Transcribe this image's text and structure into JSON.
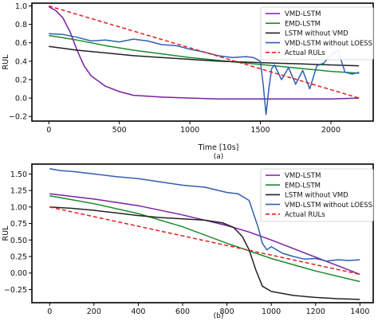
{
  "chart_data": [
    {
      "type": "line",
      "panel_label": "(a)",
      "xlabel": "Time [10s]",
      "ylabel": "RUL",
      "xlim": [
        -120,
        2300
      ],
      "ylim": [
        -0.25,
        1.03
      ],
      "xticks": [
        0,
        500,
        1000,
        1500,
        2000
      ],
      "yticks": [
        -0.2,
        0.0,
        0.2,
        0.4,
        0.6,
        0.8,
        1.0
      ],
      "ytick_labels": [
        "−0.2",
        "0.0",
        "0.2",
        "0.4",
        "0.6",
        "0.8",
        "1.0"
      ],
      "legend_position": "top-right",
      "series": [
        {
          "name": "VMD-LSTM",
          "color": "#7b1fa2",
          "dash": "",
          "x": [
            0,
            50,
            100,
            150,
            200,
            250,
            300,
            400,
            500,
            600,
            800,
            1000,
            1200,
            1500,
            2000,
            2200
          ],
          "y": [
            0.99,
            0.95,
            0.87,
            0.72,
            0.52,
            0.35,
            0.24,
            0.13,
            0.07,
            0.03,
            0.01,
            0.0,
            -0.01,
            -0.01,
            -0.01,
            0.0
          ]
        },
        {
          "name": "EMD-LSTM",
          "color": "#1a8a2e",
          "dash": "",
          "x": [
            0,
            200,
            400,
            600,
            800,
            1000,
            1200,
            1400,
            1600,
            1800,
            2000,
            2200
          ],
          "y": [
            0.68,
            0.63,
            0.57,
            0.52,
            0.48,
            0.44,
            0.41,
            0.38,
            0.35,
            0.32,
            0.29,
            0.27
          ]
        },
        {
          "name": "LSTM without VMD",
          "color": "#222222",
          "dash": "",
          "x": [
            0,
            200,
            400,
            600,
            800,
            1000,
            1200,
            1400,
            1600,
            1800,
            2000,
            2200
          ],
          "y": [
            0.56,
            0.52,
            0.49,
            0.46,
            0.44,
            0.42,
            0.4,
            0.39,
            0.38,
            0.37,
            0.36,
            0.35
          ]
        },
        {
          "name": "VMD-LSTM without LOESS",
          "color": "#2f5fb3",
          "dash": "",
          "x": [
            0,
            100,
            200,
            300,
            400,
            500,
            600,
            700,
            800,
            900,
            1000,
            1100,
            1200,
            1300,
            1400,
            1450,
            1500,
            1520,
            1540,
            1560,
            1580,
            1600,
            1650,
            1700,
            1750,
            1800,
            1850,
            1900,
            1950,
            2000,
            2050,
            2100,
            2150,
            2200
          ],
          "y": [
            0.7,
            0.69,
            0.66,
            0.62,
            0.63,
            0.61,
            0.64,
            0.62,
            0.58,
            0.57,
            0.53,
            0.5,
            0.46,
            0.44,
            0.45,
            0.44,
            0.4,
            0.15,
            -0.18,
            0.1,
            0.32,
            0.36,
            0.2,
            0.33,
            0.15,
            0.3,
            0.1,
            0.35,
            0.38,
            0.47,
            0.52,
            0.28,
            0.26,
            0.28
          ]
        },
        {
          "name": "Actual RULs",
          "color": "#e02020",
          "dash": "5,3",
          "x": [
            0,
            2200
          ],
          "y": [
            1.0,
            0.0
          ]
        }
      ]
    },
    {
      "type": "line",
      "panel_label": "(b)",
      "xlabel": "",
      "ylabel": "RUL",
      "xlim": [
        -80,
        1460
      ],
      "ylim": [
        -0.45,
        1.65
      ],
      "xticks": [
        0,
        200,
        400,
        600,
        800,
        1000,
        1200,
        1400
      ],
      "yticks": [
        -0.25,
        0.0,
        0.25,
        0.5,
        0.75,
        1.0,
        1.25,
        1.5
      ],
      "ytick_labels": [
        "−0.25",
        "0.00",
        "0.25",
        "0.50",
        "0.75",
        "1.00",
        "1.25",
        "1.50"
      ],
      "legend_position": "top-right",
      "series": [
        {
          "name": "VMD-LSTM",
          "color": "#7b1fa2",
          "dash": "",
          "x": [
            0,
            200,
            400,
            600,
            800,
            900,
            1000,
            1100,
            1200,
            1300,
            1400
          ],
          "y": [
            1.2,
            1.12,
            1.02,
            0.88,
            0.72,
            0.62,
            0.5,
            0.37,
            0.24,
            0.11,
            -0.02
          ]
        },
        {
          "name": "EMD-LSTM",
          "color": "#1a8a2e",
          "dash": "",
          "x": [
            0,
            200,
            400,
            600,
            800,
            1000,
            1200,
            1400
          ],
          "y": [
            1.17,
            1.05,
            0.9,
            0.7,
            0.45,
            0.22,
            0.03,
            -0.13
          ]
        },
        {
          "name": "LSTM without VMD",
          "color": "#222222",
          "dash": "",
          "x": [
            0,
            100,
            200,
            300,
            400,
            500,
            600,
            700,
            780,
            830,
            870,
            900,
            930,
            960,
            1000,
            1100,
            1200,
            1300,
            1400
          ],
          "y": [
            1.0,
            0.98,
            0.95,
            0.91,
            0.87,
            0.84,
            0.82,
            0.8,
            0.76,
            0.69,
            0.55,
            0.35,
            0.05,
            -0.2,
            -0.28,
            -0.34,
            -0.37,
            -0.39,
            -0.4
          ]
        },
        {
          "name": "VMD-LSTM without LOESS",
          "color": "#2f5fb3",
          "dash": "",
          "x": [
            0,
            50,
            100,
            200,
            300,
            400,
            500,
            600,
            700,
            800,
            850,
            900,
            920,
            940,
            960,
            980,
            1000,
            1050,
            1100,
            1150,
            1200,
            1250,
            1300,
            1350,
            1400
          ],
          "y": [
            1.58,
            1.55,
            1.54,
            1.5,
            1.46,
            1.43,
            1.38,
            1.33,
            1.3,
            1.22,
            1.2,
            1.1,
            0.9,
            0.7,
            0.45,
            0.35,
            0.4,
            0.3,
            0.25,
            0.21,
            0.22,
            0.18,
            0.2,
            0.19,
            0.2
          ]
        },
        {
          "name": "Actual RULs",
          "color": "#e02020",
          "dash": "5,3",
          "x": [
            0,
            1400
          ],
          "y": [
            1.0,
            -0.02
          ]
        }
      ]
    }
  ]
}
